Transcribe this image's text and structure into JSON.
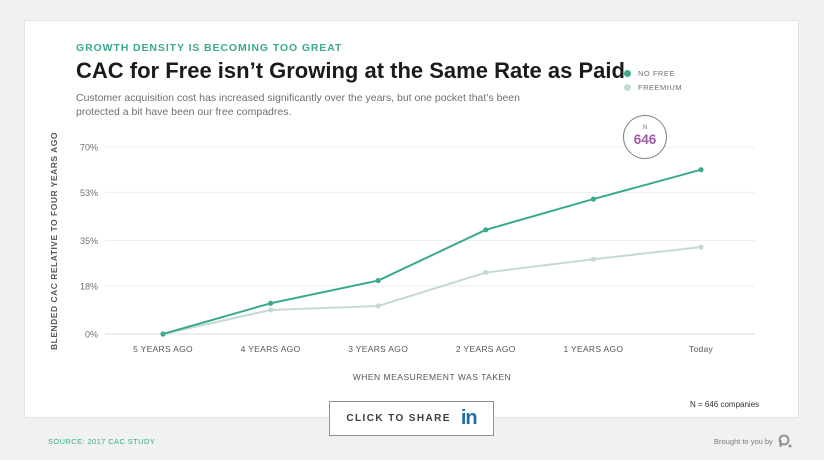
{
  "header": {
    "kicker": "GROWTH DENSITY IS BECOMING TOO GREAT",
    "title": "CAC for Free isn’t Growing at the Same Rate as Paid",
    "subtitle": "Customer acquisition cost has increased significantly over the years, but one pocket that’s been protected a bit have been our free compadres."
  },
  "legend": [
    {
      "label": "NO FREE",
      "color": "#3aaa8f"
    },
    {
      "label": "FREEMIUM",
      "color": "#c5d9d7"
    }
  ],
  "badge": {
    "label": "N",
    "value": "646"
  },
  "note": "N = 646 companies",
  "share": {
    "label": "CLICK TO SHARE",
    "icon": "linkedin-icon",
    "icon_text": "in"
  },
  "footer": {
    "source": "SOURCE: 2017 CAC STUDY",
    "brought": "Brought to you by",
    "brand_icon": "profitwell-logo-icon"
  },
  "chart_data": {
    "type": "line",
    "title": "CAC for Free isn’t Growing at the Same Rate as Paid",
    "xlabel": "WHEN MEASUREMENT WAS TAKEN",
    "ylabel": "BLENDED CAC RELATIVE TO FOUR YEARS AGO",
    "categories": [
      "5 YEARS AGO",
      "4 YEARS AGO",
      "3 YEARS AGO",
      "2 YEARS AGO",
      "1 YEARS AGO",
      "Today"
    ],
    "yticks": [
      0,
      18,
      35,
      53,
      70
    ],
    "ytick_labels": [
      "0%",
      "18%",
      "35%",
      "53%",
      "70%"
    ],
    "ylim": [
      0,
      70
    ],
    "grid": true,
    "legend_position": "top-right",
    "series": [
      {
        "name": "NO FREE",
        "color": "#3aaa8f",
        "values": [
          0,
          11.5,
          20,
          39,
          50.5,
          61.5
        ]
      },
      {
        "name": "FREEMIUM",
        "color": "#c5d9d7",
        "values": [
          0,
          9,
          10.5,
          23,
          28,
          32.5
        ]
      }
    ]
  }
}
